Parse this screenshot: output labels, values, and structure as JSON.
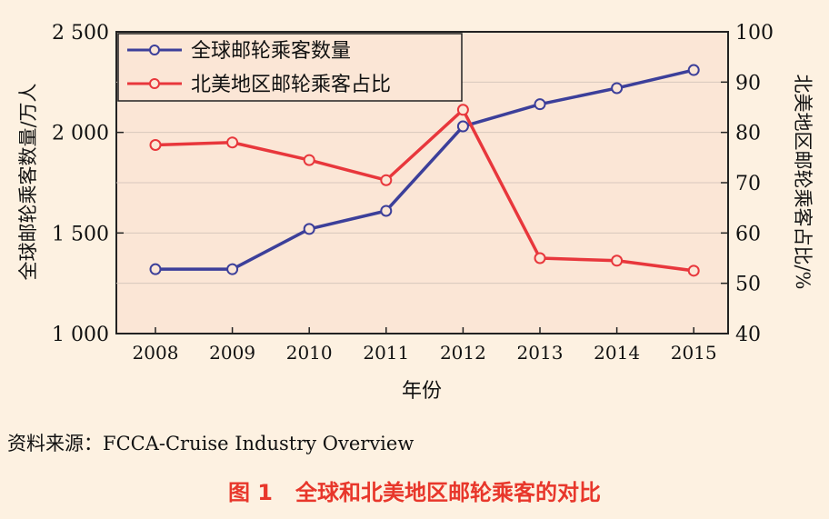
{
  "chart_data": {
    "type": "line",
    "categories": [
      "2008",
      "2009",
      "2010",
      "2011",
      "2012",
      "2013",
      "2014",
      "2015"
    ],
    "xlabel": "年份",
    "ylabel_left": "全球邮轮乘客数量/万人",
    "ylabel_right": "北美地区邮轮乘客占比/%",
    "ylim_left": [
      1000,
      2500
    ],
    "yticks_left": [
      "1 000",
      "1 500",
      "2 000",
      "2 500"
    ],
    "ylim_right": [
      40,
      100
    ],
    "yticks_right": [
      "40",
      "50",
      "60",
      "70",
      "80",
      "90",
      "100"
    ],
    "grid": true,
    "legend_position": "top-left",
    "series": [
      {
        "name": "全球邮轮乘客数量",
        "axis": "left",
        "color": "#3c3f9a",
        "values": [
          1320,
          1320,
          1520,
          1610,
          2030,
          2140,
          2220,
          2310
        ]
      },
      {
        "name": "北美地区邮轮乘客占比",
        "axis": "right",
        "color": "#e8373c",
        "values": [
          77.5,
          78,
          74.5,
          70.5,
          84.5,
          55,
          54.5,
          52.5
        ]
      }
    ]
  },
  "source_text": "资料来源：FCCA-Cruise Industry Overview",
  "caption": "图 1   全球和北美地区邮轮乘客的对比"
}
